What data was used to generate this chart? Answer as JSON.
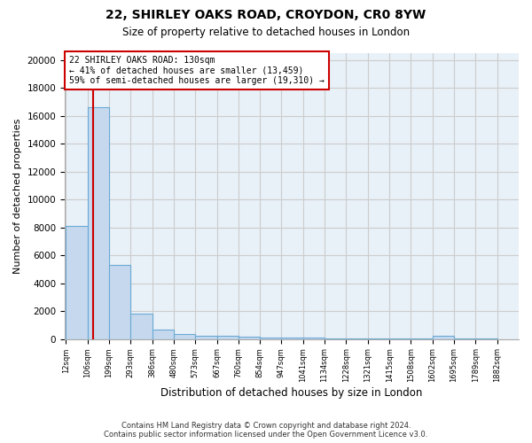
{
  "title1": "22, SHIRLEY OAKS ROAD, CROYDON, CR0 8YW",
  "title2": "Size of property relative to detached houses in London",
  "xlabel": "Distribution of detached houses by size in London",
  "ylabel": "Number of detached properties",
  "bar_edges": [
    12,
    106,
    199,
    293,
    386,
    480,
    573,
    667,
    760,
    854,
    947,
    1041,
    1134,
    1228,
    1321,
    1415,
    1508,
    1602,
    1695,
    1789,
    1882
  ],
  "bar_heights": [
    8100,
    16600,
    5300,
    1800,
    700,
    350,
    250,
    200,
    150,
    100,
    100,
    80,
    60,
    50,
    40,
    30,
    25,
    200,
    20,
    15
  ],
  "bar_color": "#c5d8ee",
  "bar_edge_color": "#6aaad4",
  "property_sqm": 130,
  "property_label": "22 SHIRLEY OAKS ROAD: 130sqm",
  "annotation_line1": "← 41% of detached houses are smaller (13,459)",
  "annotation_line2": "59% of semi-detached houses are larger (19,310) →",
  "vline_color": "#cc0000",
  "annotation_box_edge": "#cc0000",
  "annotation_box_face": "#ffffff",
  "ylim": [
    0,
    20500
  ],
  "yticks": [
    0,
    2000,
    4000,
    6000,
    8000,
    10000,
    12000,
    14000,
    16000,
    18000,
    20000
  ],
  "grid_color": "#cccccc",
  "bg_color": "#e8f0f8",
  "footer1": "Contains HM Land Registry data © Crown copyright and database right 2024.",
  "footer2": "Contains public sector information licensed under the Open Government Licence v3.0."
}
